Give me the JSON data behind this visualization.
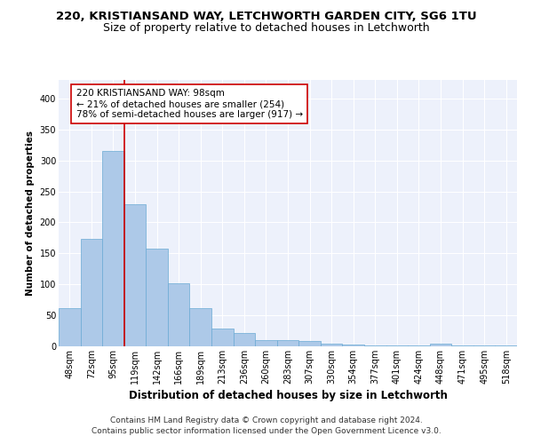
{
  "title1": "220, KRISTIANSAND WAY, LETCHWORTH GARDEN CITY, SG6 1TU",
  "title2": "Size of property relative to detached houses in Letchworth",
  "xlabel": "Distribution of detached houses by size in Letchworth",
  "ylabel": "Number of detached properties",
  "categories": [
    "48sqm",
    "72sqm",
    "95sqm",
    "119sqm",
    "142sqm",
    "166sqm",
    "189sqm",
    "213sqm",
    "236sqm",
    "260sqm",
    "283sqm",
    "307sqm",
    "330sqm",
    "354sqm",
    "377sqm",
    "401sqm",
    "424sqm",
    "448sqm",
    "471sqm",
    "495sqm",
    "518sqm"
  ],
  "values": [
    62,
    173,
    315,
    230,
    157,
    102,
    61,
    28,
    22,
    10,
    10,
    8,
    5,
    3,
    2,
    1,
    1,
    4,
    1,
    1,
    2
  ],
  "bar_color": "#adc9e8",
  "bar_edge_color": "#6aaad4",
  "bar_linewidth": 0.5,
  "property_index": 2,
  "property_line_color": "#cc0000",
  "annotation_line1": "220 KRISTIANSAND WAY: 98sqm",
  "annotation_line2": "← 21% of detached houses are smaller (254)",
  "annotation_line3": "78% of semi-detached houses are larger (917) →",
  "annotation_box_color": "#ffffff",
  "annotation_border_color": "#cc0000",
  "ylim": [
    0,
    430
  ],
  "yticks": [
    0,
    50,
    100,
    150,
    200,
    250,
    300,
    350,
    400
  ],
  "background_color": "#edf1fb",
  "grid_color": "#ffffff",
  "footer_line1": "Contains HM Land Registry data © Crown copyright and database right 2024.",
  "footer_line2": "Contains public sector information licensed under the Open Government Licence v3.0.",
  "title1_fontsize": 9.5,
  "title2_fontsize": 9,
  "xlabel_fontsize": 8.5,
  "ylabel_fontsize": 7.5,
  "tick_fontsize": 7,
  "annotation_fontsize": 7.5,
  "footer_fontsize": 6.5
}
